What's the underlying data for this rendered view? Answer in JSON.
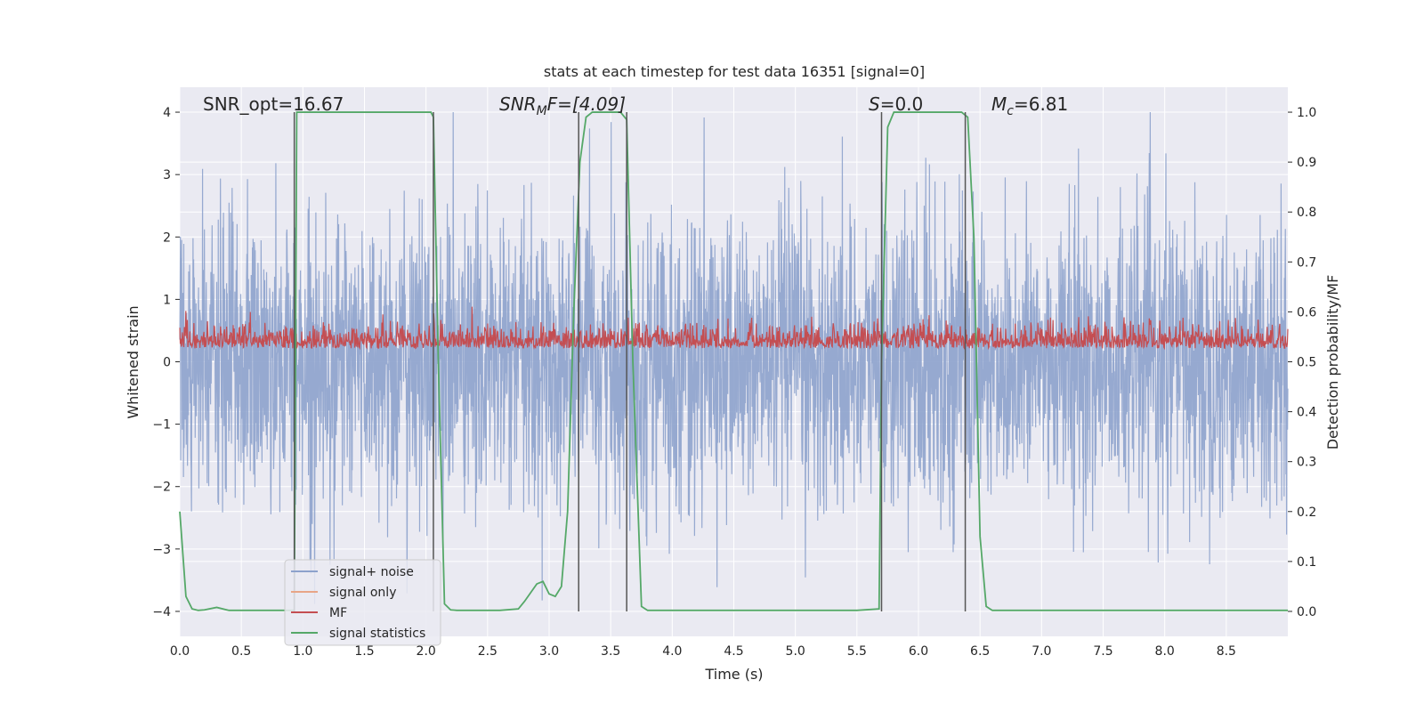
{
  "chart_data": {
    "type": "line",
    "title": "stats at each timestep for test data 16351 [signal=0]",
    "xlabel": "Time (s)",
    "ylabel": "Whitened strain",
    "y2label": "Detection probability/MF",
    "xlim": [
      0.0,
      9.0
    ],
    "ylim": [
      -4.4,
      4.4
    ],
    "y2lim": [
      -0.05,
      1.05
    ],
    "xticks": [
      "0.0",
      "0.5",
      "1.0",
      "1.5",
      "2.0",
      "2.5",
      "3.0",
      "3.5",
      "4.0",
      "4.5",
      "5.0",
      "5.5",
      "6.0",
      "6.5",
      "7.0",
      "7.5",
      "8.0",
      "8.5"
    ],
    "xtick_values": [
      0.0,
      0.5,
      1.0,
      1.5,
      2.0,
      2.5,
      3.0,
      3.5,
      4.0,
      4.5,
      5.0,
      5.5,
      6.0,
      6.5,
      7.0,
      7.5,
      8.0,
      8.5
    ],
    "yticks": [
      "−4",
      "−3",
      "−2",
      "−1",
      "0",
      "1",
      "2",
      "3",
      "4"
    ],
    "ytick_values": [
      -4,
      -3,
      -2,
      -1,
      0,
      1,
      2,
      3,
      4
    ],
    "y2ticks": [
      "0.0",
      "0.1",
      "0.2",
      "0.3",
      "0.4",
      "0.5",
      "0.6",
      "0.7",
      "0.8",
      "0.9",
      "1.0"
    ],
    "y2tick_values": [
      0.0,
      0.1,
      0.2,
      0.3,
      0.4,
      0.5,
      0.6,
      0.7,
      0.8,
      0.9,
      1.0
    ],
    "annotations": {
      "snr_opt": "SNR_opt=16.67",
      "snr_mf_main": "SNR",
      "snr_mf_sub": "M",
      "snr_mf_rest": "F=[4.09]",
      "s_main": "S",
      "s_rest": "=0.0",
      "mc_main": "M",
      "mc_sub": "c",
      "mc_rest": "=6.81"
    },
    "vertical_lines": [
      0.93,
      2.06,
      3.24,
      3.63,
      5.7,
      6.38
    ],
    "series": [
      {
        "name": "signal+ noise",
        "color": "#8da2cc",
        "values": "noise whitened strain, approx within [-4, 4]"
      },
      {
        "name": "signal only",
        "color": "#e8a587",
        "values": []
      },
      {
        "name": "MF",
        "color": "#c44e52",
        "values": "approx within [0.5, 0.62] on right axis"
      },
      {
        "name": "signal statistics",
        "color": "#55a868",
        "x": [
          0.0,
          0.05,
          0.1,
          0.15,
          0.2,
          0.3,
          0.4,
          0.5,
          0.6,
          0.7,
          0.8,
          0.9,
          0.93,
          0.95,
          1.0,
          1.2,
          1.5,
          1.8,
          2.0,
          2.04,
          2.06,
          2.1,
          2.15,
          2.2,
          2.25,
          2.4,
          2.6,
          2.75,
          2.8,
          2.9,
          2.95,
          3.0,
          3.05,
          3.1,
          3.15,
          3.2,
          3.25,
          3.3,
          3.35,
          3.4,
          3.5,
          3.58,
          3.63,
          3.68,
          3.75,
          3.8,
          4.0,
          4.5,
          5.0,
          5.5,
          5.68,
          5.7,
          5.75,
          5.8,
          6.0,
          6.2,
          6.35,
          6.4,
          6.45,
          6.5,
          6.55,
          6.6,
          7.0,
          7.5,
          8.0,
          8.5,
          9.0
        ],
        "y": [
          0.2,
          0.03,
          0.005,
          0.002,
          0.003,
          0.008,
          0.002,
          0.002,
          0.002,
          0.002,
          0.002,
          0.002,
          0.002,
          1.0,
          1.0,
          1.0,
          1.0,
          1.0,
          1.0,
          1.0,
          0.99,
          0.5,
          0.015,
          0.003,
          0.002,
          0.002,
          0.002,
          0.005,
          0.02,
          0.055,
          0.06,
          0.035,
          0.03,
          0.05,
          0.2,
          0.6,
          0.9,
          0.99,
          1.0,
          1.0,
          1.0,
          1.0,
          0.985,
          0.5,
          0.01,
          0.002,
          0.002,
          0.002,
          0.002,
          0.002,
          0.005,
          0.5,
          0.97,
          1.0,
          1.0,
          1.0,
          1.0,
          0.99,
          0.75,
          0.15,
          0.01,
          0.002,
          0.002,
          0.002,
          0.002,
          0.002,
          0.002
        ]
      }
    ],
    "legend": [
      "signal+ noise",
      "signal only",
      "MF",
      "signal statistics"
    ],
    "legend_location": "lower-left",
    "grid": true
  }
}
